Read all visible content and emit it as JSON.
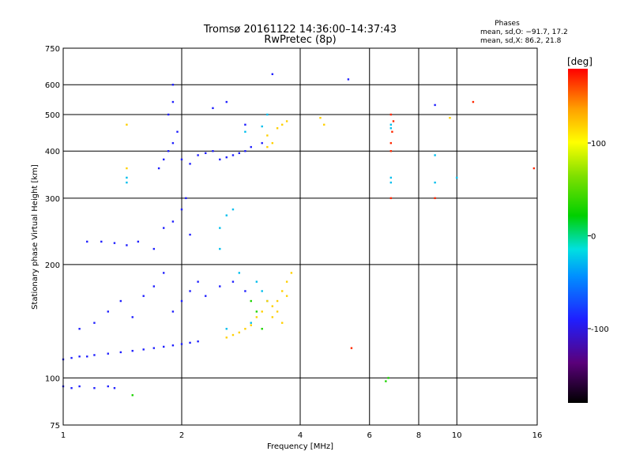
{
  "chart_data": {
    "type": "scatter",
    "title": "Tromsø 20161122 14:36:00–14:37:43",
    "subtitle": "RwPretec (8p)",
    "xlabel": "Frequency [MHz]",
    "ylabel": "Stationary phase Virtual Height [km]",
    "x_scale": "log",
    "y_scale": "log",
    "xlim": [
      1,
      16
    ],
    "ylim": [
      75,
      750
    ],
    "x_ticks": [
      1,
      2,
      4,
      6,
      8,
      10,
      16
    ],
    "y_ticks": [
      75,
      100,
      200,
      300,
      400,
      500,
      600,
      750
    ],
    "grid": true,
    "phases_box": {
      "title": "Phases",
      "line_o": "mean, sd,O: −91.7, 17.2",
      "line_x": "mean, sd,X:  86.2, 21.8"
    },
    "colorbar": {
      "label": "[deg]",
      "range": [
        -180,
        180
      ],
      "ticks": [
        100,
        0,
        -100
      ]
    },
    "series": [
      {
        "phase_deg": -100,
        "points": [
          [
            1.0,
            112
          ],
          [
            1.05,
            113
          ],
          [
            1.1,
            114
          ],
          [
            1.15,
            114
          ],
          [
            1.2,
            115
          ],
          [
            1.3,
            116
          ],
          [
            1.4,
            117
          ],
          [
            1.5,
            118
          ],
          [
            1.6,
            119
          ],
          [
            1.7,
            120
          ],
          [
            1.8,
            121
          ],
          [
            1.9,
            122
          ],
          [
            2.0,
            123
          ],
          [
            2.1,
            124
          ],
          [
            2.2,
            125
          ],
          [
            1.0,
            95
          ],
          [
            1.05,
            94
          ],
          [
            1.1,
            95
          ],
          [
            1.2,
            94
          ],
          [
            1.3,
            95
          ],
          [
            1.35,
            94
          ],
          [
            1.1,
            135
          ],
          [
            1.2,
            140
          ],
          [
            1.3,
            150
          ],
          [
            1.4,
            160
          ],
          [
            1.5,
            145
          ],
          [
            1.6,
            165
          ],
          [
            1.7,
            175
          ],
          [
            1.8,
            190
          ],
          [
            1.9,
            150
          ],
          [
            2.0,
            160
          ],
          [
            2.1,
            170
          ],
          [
            2.2,
            180
          ],
          [
            2.3,
            165
          ],
          [
            2.5,
            175
          ],
          [
            2.7,
            180
          ],
          [
            2.9,
            170
          ],
          [
            1.15,
            230
          ],
          [
            1.25,
            230
          ],
          [
            1.35,
            228
          ],
          [
            1.45,
            225
          ],
          [
            1.55,
            230
          ],
          [
            1.7,
            220
          ],
          [
            1.8,
            250
          ],
          [
            1.9,
            260
          ],
          [
            2.0,
            280
          ],
          [
            2.05,
            300
          ],
          [
            2.1,
            240
          ],
          [
            1.75,
            360
          ],
          [
            1.8,
            380
          ],
          [
            1.85,
            400
          ],
          [
            1.9,
            420
          ],
          [
            1.95,
            450
          ],
          [
            1.85,
            500
          ],
          [
            1.9,
            540
          ],
          [
            2.0,
            380
          ],
          [
            2.1,
            370
          ],
          [
            2.2,
            390
          ],
          [
            2.3,
            395
          ],
          [
            2.4,
            400
          ],
          [
            2.5,
            380
          ],
          [
            2.6,
            385
          ],
          [
            2.7,
            390
          ],
          [
            2.8,
            395
          ],
          [
            2.9,
            400
          ],
          [
            3.0,
            410
          ],
          [
            2.4,
            520
          ],
          [
            2.6,
            540
          ],
          [
            2.9,
            470
          ],
          [
            3.2,
            420
          ],
          [
            3.4,
            640
          ],
          [
            1.9,
            600
          ],
          [
            5.3,
            620
          ],
          [
            8.8,
            530
          ]
        ]
      },
      {
        "phase_deg": -30,
        "points": [
          [
            2.5,
            220
          ],
          [
            2.6,
            270
          ],
          [
            2.7,
            280
          ],
          [
            3.1,
            180
          ],
          [
            3.2,
            170
          ],
          [
            3.3,
            160
          ],
          [
            2.8,
            190
          ],
          [
            2.6,
            135
          ],
          [
            2.5,
            250
          ],
          [
            2.9,
            450
          ],
          [
            3.2,
            465
          ],
          [
            3.3,
            500
          ],
          [
            3.0,
            140
          ],
          [
            6.8,
            460
          ],
          [
            6.8,
            470
          ],
          [
            6.8,
            340
          ],
          [
            6.8,
            330
          ],
          [
            8.8,
            390
          ],
          [
            8.8,
            330
          ],
          [
            10.0,
            340
          ],
          [
            1.45,
            340
          ],
          [
            1.45,
            330
          ]
        ]
      },
      {
        "phase_deg": 120,
        "points": [
          [
            2.6,
            128
          ],
          [
            2.7,
            130
          ],
          [
            2.8,
            132
          ],
          [
            2.9,
            135
          ],
          [
            3.0,
            138
          ],
          [
            3.1,
            145
          ],
          [
            3.2,
            150
          ],
          [
            3.3,
            160
          ],
          [
            3.4,
            155
          ],
          [
            3.5,
            160
          ],
          [
            3.6,
            170
          ],
          [
            3.7,
            180
          ],
          [
            3.8,
            190
          ],
          [
            3.5,
            150
          ],
          [
            3.4,
            145
          ],
          [
            3.6,
            140
          ],
          [
            3.7,
            165
          ],
          [
            3.3,
            440
          ],
          [
            3.5,
            460
          ],
          [
            3.6,
            470
          ],
          [
            3.7,
            480
          ],
          [
            3.4,
            420
          ],
          [
            3.3,
            410
          ],
          [
            4.6,
            470
          ],
          [
            4.5,
            490
          ],
          [
            9.6,
            490
          ],
          [
            1.45,
            360
          ],
          [
            1.45,
            470
          ]
        ]
      },
      {
        "phase_deg": 170,
        "points": [
          [
            6.8,
            300
          ],
          [
            6.8,
            400
          ],
          [
            6.8,
            420
          ],
          [
            6.9,
            480
          ],
          [
            6.8,
            500
          ],
          [
            6.85,
            450
          ],
          [
            8.8,
            300
          ],
          [
            11.0,
            540
          ],
          [
            15.7,
            360
          ],
          [
            5.4,
            120
          ]
        ]
      },
      {
        "phase_deg": 30,
        "points": [
          [
            3.1,
            150
          ],
          [
            3.2,
            135
          ],
          [
            3.0,
            160
          ],
          [
            6.6,
            98
          ],
          [
            6.7,
            100
          ],
          [
            1.5,
            90
          ]
        ]
      }
    ]
  }
}
